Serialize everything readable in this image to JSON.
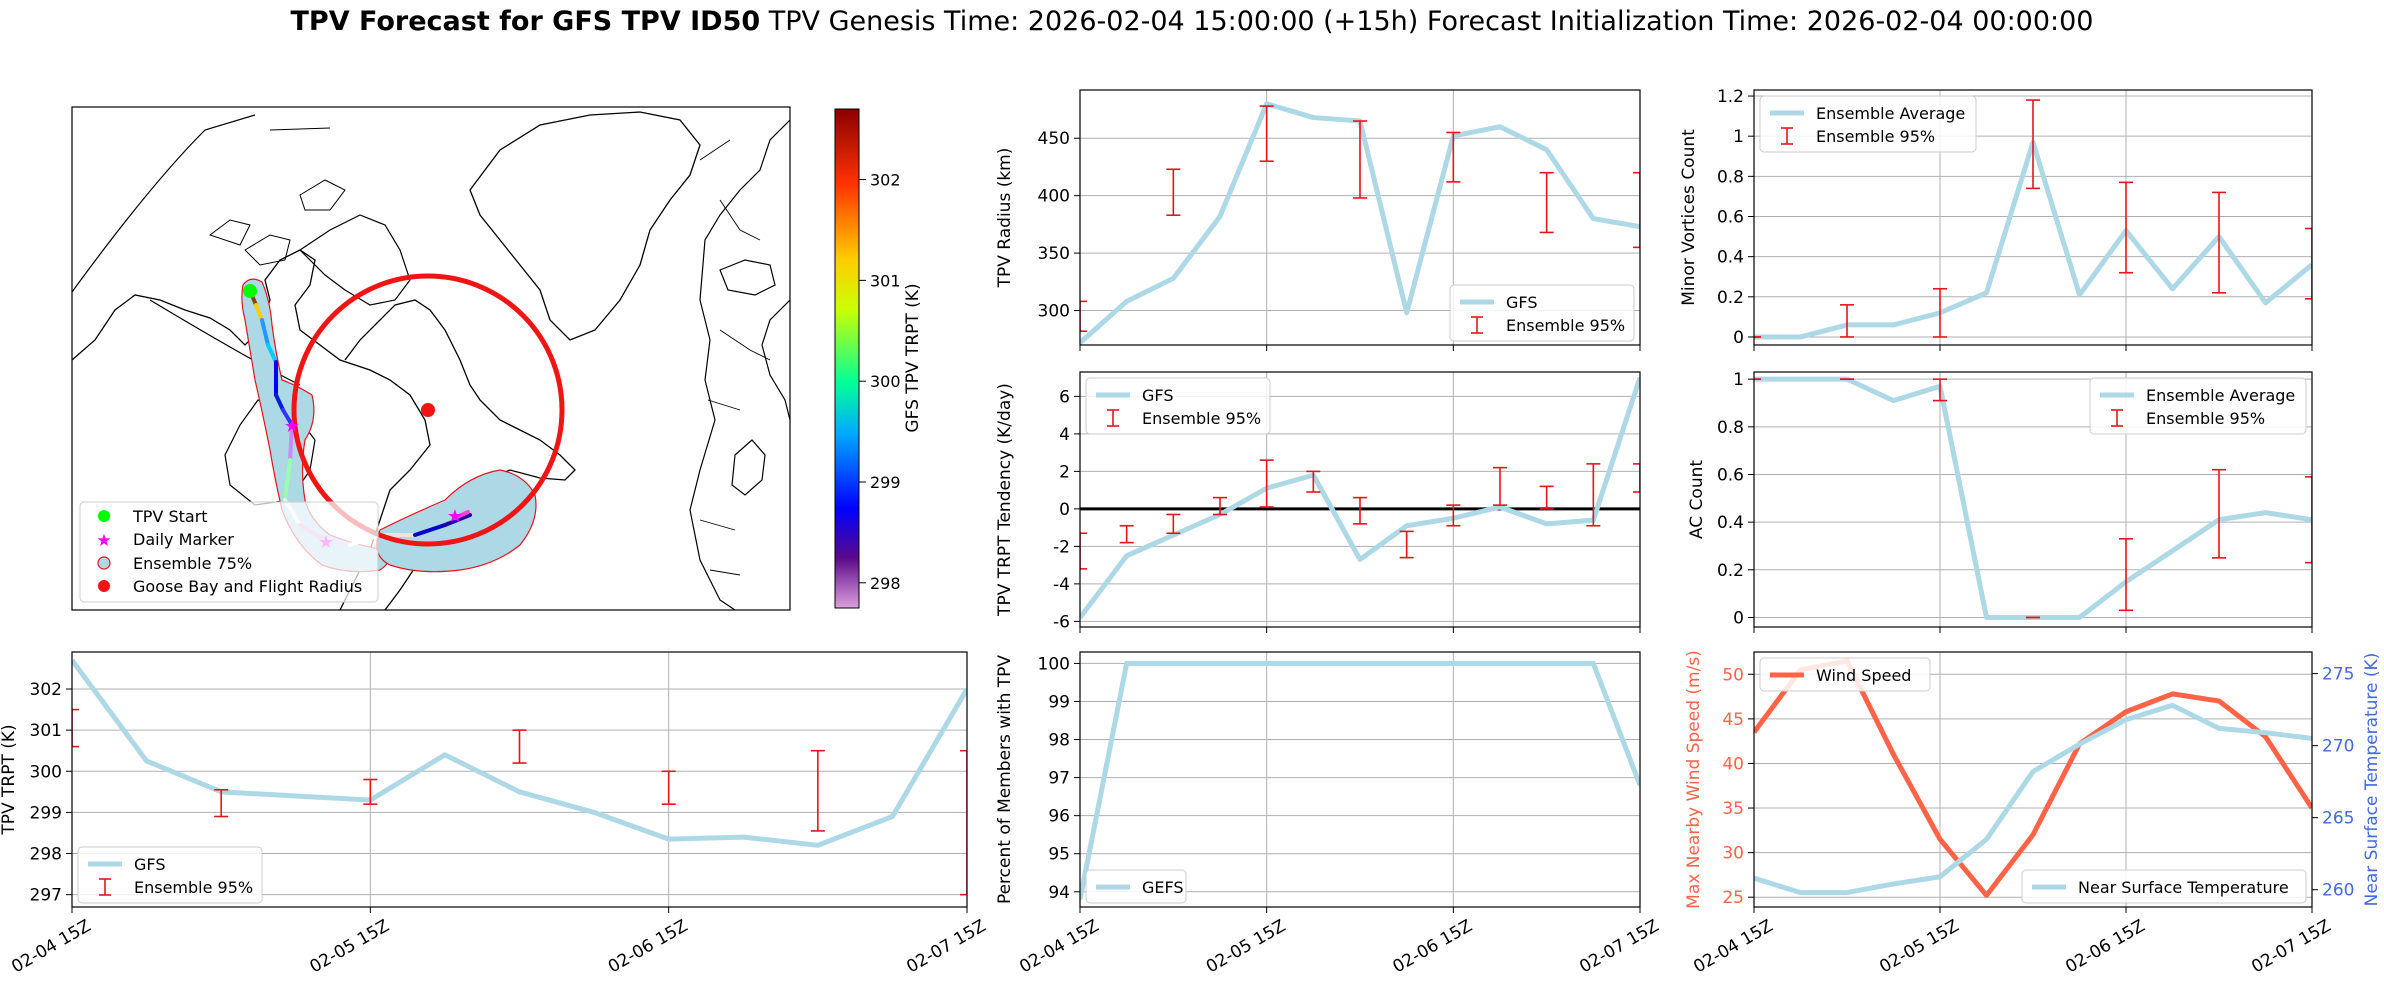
{
  "figure": {
    "title_bold": "TPV Forecast for GFS TPV ID50",
    "title_genesis": "TPV Genesis Time: 2026-02-04 15:00:00 (+15h)",
    "title_init": "Forecast Initialization Time: 2026-02-04 00:00:00"
  },
  "colors": {
    "gfs_line": "#add8e6",
    "error_bar": "#e8141b",
    "wind": "#ff6347",
    "temp_axis": "#4169e1",
    "ensemble_fill": "#add8e6",
    "flight_circle": "#f01414",
    "zero_line": "#000000"
  },
  "time_ticks": [
    "02-04 15Z",
    "02-05 15Z",
    "02-06 15Z",
    "02-07 15Z"
  ],
  "map": {
    "colorbar_label": "GFS TPV TRPT (K)",
    "colorbar_ticks": [
      298,
      299,
      300,
      301,
      302
    ],
    "colorbar_range": [
      297.75,
      302.7
    ],
    "legend": [
      "TPV Start",
      "Daily Marker",
      "Ensemble 75%",
      "Goose Bay and Flight Radius"
    ]
  },
  "chart_data": [
    {
      "id": "radius",
      "type": "line",
      "ylabel": "TPV Radius (km)",
      "ylim": [
        270,
        492
      ],
      "yticks": [
        300,
        350,
        400,
        450
      ],
      "x": [
        0,
        0.25,
        0.5,
        0.75,
        1.0,
        1.25,
        1.5,
        1.75,
        2.0,
        2.25,
        2.5,
        2.75,
        3.0
      ],
      "series": [
        {
          "name": "GFS",
          "values": [
            272,
            308,
            328,
            382,
            480,
            468,
            465,
            298,
            452,
            460,
            440,
            380,
            373
          ]
        }
      ],
      "error_bars": {
        "name": "Ensemble 95%",
        "x": [
          0,
          0.5,
          1.0,
          1.5,
          2.0,
          2.5,
          3.0
        ],
        "low": [
          282,
          383,
          430,
          398,
          412,
          368,
          355
        ],
        "high": [
          308,
          423,
          478,
          465,
          455,
          420,
          420
        ]
      },
      "legend_pos": "lower-right"
    },
    {
      "id": "minor",
      "type": "line",
      "ylabel": "Minor Vortices Count",
      "ylim": [
        -0.04,
        1.23
      ],
      "yticks": [
        0.0,
        0.2,
        0.4,
        0.6,
        0.8,
        1.0,
        1.2
      ],
      "x": [
        0,
        0.25,
        0.5,
        0.75,
        1.0,
        1.25,
        1.5,
        1.75,
        2.0,
        2.25,
        2.5,
        2.75,
        3.0
      ],
      "series": [
        {
          "name": "Ensemble Average",
          "values": [
            0.0,
            0.0,
            0.06,
            0.06,
            0.12,
            0.22,
            0.97,
            0.21,
            0.53,
            0.24,
            0.5,
            0.17,
            0.36
          ]
        }
      ],
      "error_bars": {
        "name": "Ensemble 95%",
        "x": [
          0,
          0.5,
          1.0,
          1.5,
          2.0,
          2.5,
          3.0
        ],
        "low": [
          0.0,
          0.0,
          0.0,
          0.74,
          0.32,
          0.22,
          0.19
        ],
        "high": [
          0.0,
          0.16,
          0.24,
          1.18,
          0.77,
          0.72,
          0.54
        ]
      },
      "legend_pos": "upper-left"
    },
    {
      "id": "tendency",
      "type": "line",
      "ylabel": "TPV TRPT Tendency (K/day)",
      "ylim": [
        -6.3,
        7.3
      ],
      "yticks": [
        -6,
        -4,
        -2,
        0,
        2,
        4,
        6
      ],
      "zero_line": true,
      "x": [
        0,
        0.25,
        0.5,
        0.75,
        1.0,
        1.25,
        1.5,
        1.75,
        2.0,
        2.25,
        2.5,
        2.75,
        3.0
      ],
      "series": [
        {
          "name": "GFS",
          "values": [
            -5.8,
            -2.5,
            -1.4,
            -0.3,
            1.1,
            1.8,
            -2.7,
            -0.9,
            -0.5,
            0.1,
            -0.8,
            -0.6,
            7.0
          ]
        }
      ],
      "error_bars": {
        "name": "Ensemble 95%",
        "x": [
          0,
          0.25,
          0.5,
          0.75,
          1.0,
          1.25,
          1.5,
          1.75,
          2.0,
          2.25,
          2.5,
          2.75,
          3.0
        ],
        "low": [
          -3.2,
          -1.8,
          -1.3,
          -0.3,
          0.1,
          0.9,
          -0.8,
          -2.6,
          -0.9,
          0.2,
          0.0,
          -0.9,
          0.9
        ],
        "high": [
          -1.3,
          -0.9,
          -0.3,
          0.6,
          2.6,
          2.0,
          0.6,
          -1.2,
          0.2,
          2.2,
          1.2,
          2.4,
          2.4
        ]
      },
      "legend_pos": "upper-left"
    },
    {
      "id": "ac",
      "type": "line",
      "ylabel": "AC Count",
      "ylim": [
        -0.04,
        1.03
      ],
      "yticks": [
        0.0,
        0.2,
        0.4,
        0.6,
        0.8,
        1.0
      ],
      "x": [
        0,
        0.25,
        0.5,
        0.75,
        1.0,
        1.25,
        1.5,
        1.75,
        2.0,
        2.25,
        2.5,
        2.75,
        3.0
      ],
      "series": [
        {
          "name": "Ensemble Average",
          "values": [
            1.0,
            1.0,
            1.0,
            0.91,
            0.97,
            0.0,
            0.0,
            0.0,
            0.15,
            0.28,
            0.41,
            0.44,
            0.41
          ]
        }
      ],
      "error_bars": {
        "name": "Ensemble 95%",
        "x": [
          0,
          0.5,
          1.0,
          1.5,
          2.0,
          2.5,
          3.0
        ],
        "low": [
          1.0,
          1.0,
          0.91,
          0.0,
          0.03,
          0.25,
          0.23
        ],
        "high": [
          1.0,
          1.0,
          1.0,
          0.0,
          0.33,
          0.62,
          0.59
        ]
      },
      "legend_pos": "upper-right"
    },
    {
      "id": "trpt",
      "type": "line",
      "ylabel": "TPV TRPT (K)",
      "ylim": [
        296.7,
        302.9
      ],
      "yticks": [
        297,
        298,
        299,
        300,
        301,
        302
      ],
      "x": [
        0,
        0.25,
        0.5,
        0.75,
        1.0,
        1.25,
        1.5,
        1.75,
        2.0,
        2.25,
        2.5,
        2.75,
        3.0
      ],
      "series": [
        {
          "name": "GFS",
          "values": [
            302.7,
            300.25,
            299.5,
            299.4,
            299.3,
            300.4,
            299.5,
            299.0,
            298.35,
            298.4,
            298.2,
            298.9,
            302.0
          ]
        }
      ],
      "error_bars": {
        "name": "Ensemble 95%",
        "x": [
          0,
          0.5,
          1.0,
          1.5,
          2.0,
          2.5,
          3.0
        ],
        "low": [
          300.6,
          298.9,
          299.2,
          300.2,
          299.2,
          298.55,
          297.0
        ],
        "high": [
          301.5,
          299.55,
          299.8,
          301.0,
          300.0,
          300.5,
          300.5
        ]
      },
      "legend_pos": "lower-left"
    },
    {
      "id": "members",
      "type": "line",
      "ylabel": "Percent of Members with TPV",
      "ylim": [
        93.6,
        100.3
      ],
      "yticks": [
        94,
        95,
        96,
        97,
        98,
        99,
        100
      ],
      "x": [
        0,
        0.25,
        0.5,
        0.75,
        1.0,
        1.25,
        1.5,
        1.75,
        2.0,
        2.25,
        2.5,
        2.75,
        3.0
      ],
      "series": [
        {
          "name": "GEFS",
          "values": [
            93.8,
            100,
            100,
            100,
            100,
            100,
            100,
            100,
            100,
            100,
            100,
            100,
            96.8
          ]
        }
      ],
      "legend_pos": "lower-left"
    },
    {
      "id": "wind_temp",
      "type": "line",
      "ylabel": "Max Nearby Wind Speed (m/s)",
      "ylabel_right": "Near Surface Temperature (K)",
      "ylim": [
        23.9,
        52.5
      ],
      "yticks": [
        25,
        30,
        35,
        40,
        45,
        50
      ],
      "ylim_right": [
        258.8,
        276.5
      ],
      "yticks_right": [
        260,
        265,
        270,
        275
      ],
      "x": [
        0,
        0.25,
        0.5,
        0.75,
        1.0,
        1.25,
        1.5,
        1.75,
        2.0,
        2.25,
        2.5,
        2.75,
        3.0
      ],
      "series": [
        {
          "name": "Wind Speed",
          "axis": "left",
          "values": [
            43.5,
            50.5,
            51.5,
            41,
            31.5,
            25.2,
            32,
            42.2,
            45.8,
            47.8,
            47,
            43,
            35
          ]
        },
        {
          "name": "Near Surface Temperature",
          "axis": "right",
          "values": [
            260.8,
            259.8,
            259.8,
            260.4,
            260.9,
            263.5,
            268.2,
            270.1,
            271.8,
            272.8,
            271.2,
            270.9,
            270.5
          ]
        }
      ],
      "legend_pos": "upper-left / lower-right"
    }
  ]
}
